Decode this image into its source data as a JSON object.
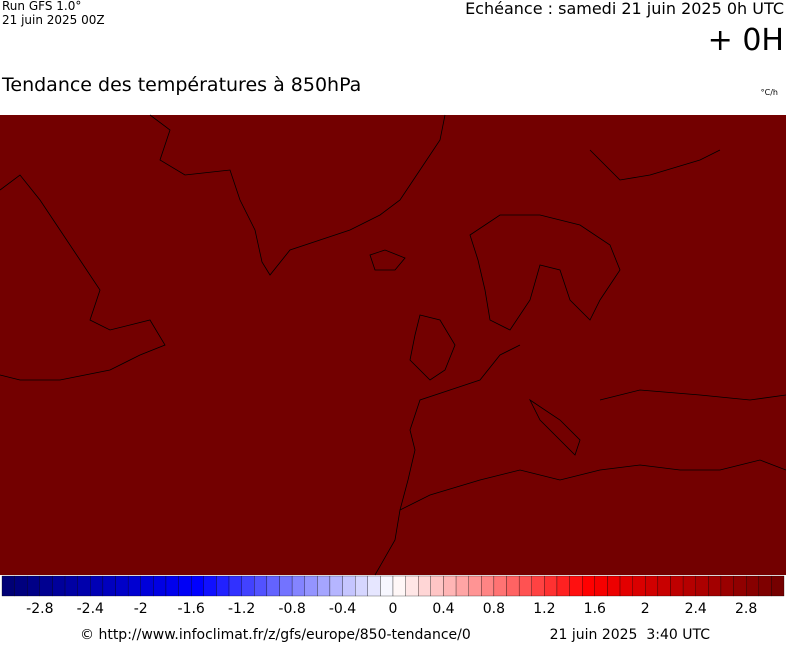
{
  "header": {
    "run": "Run GFS 1.0°",
    "run_date": "21 juin 2025 00Z",
    "echeance": "Echéance : samedi 21 juin 2025 0h UTC",
    "offset": "+ 0H"
  },
  "title": "Tendance des températures à 850hPa",
  "unit": "°C/h",
  "map_color": "#730000",
  "colorbar": {
    "xlim": [
      -3.1,
      3.1
    ],
    "ticks": [
      -2.8,
      -2.4,
      -2,
      -1.6,
      -1.2,
      -0.8,
      -0.4,
      0,
      0.4,
      0.8,
      1.2,
      1.6,
      2,
      2.4,
      2.8
    ],
    "colors": [
      "#000070",
      "#0000ff",
      "#ffffff",
      "#ff0000",
      "#700000"
    ]
  },
  "footer": {
    "url": "© http://www.infoclimat.fr/z/gfs/europe/850-tendance/0",
    "time": "21 juin 2025  3:40 UTC"
  }
}
